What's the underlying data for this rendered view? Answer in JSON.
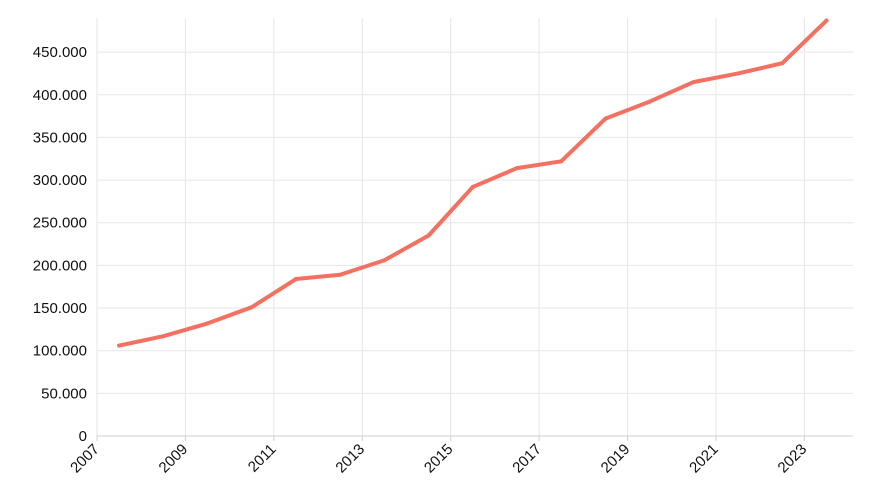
{
  "chart_data": {
    "type": "line",
    "title": "",
    "xlabel": "",
    "ylabel": "",
    "xlim": [
      2007,
      2024.1
    ],
    "ylim": [
      0,
      490000
    ],
    "grid": true,
    "legend": "none",
    "x_ticks": [
      2007,
      2009,
      2011,
      2013,
      2015,
      2017,
      2019,
      2021,
      2023
    ],
    "x_tick_labels": [
      "2007",
      "2009",
      "2011",
      "2013",
      "2015",
      "2017",
      "2019",
      "2021",
      "2023"
    ],
    "y_ticks": [
      0,
      50000,
      100000,
      150000,
      200000,
      250000,
      300000,
      350000,
      400000,
      450000
    ],
    "y_tick_labels": [
      "0",
      "50.000",
      "100.000",
      "150.000",
      "200.000",
      "250.000",
      "300.000",
      "350.000",
      "400.000",
      "450.000"
    ],
    "series": [
      {
        "color": "#f47060",
        "x": [
          2007.5,
          2008.5,
          2009.5,
          2010.5,
          2011.5,
          2012.5,
          2013.5,
          2014.5,
          2015.5,
          2016.5,
          2017.5,
          2018.5,
          2019.5,
          2020.5,
          2021.5,
          2022.5,
          2023.5
        ],
        "y": [
          106000,
          117000,
          132000,
          151000,
          184000,
          189000,
          206000,
          235000,
          292000,
          314000,
          322000,
          372000,
          392000,
          415000,
          425000,
          437000,
          487000
        ]
      }
    ]
  }
}
